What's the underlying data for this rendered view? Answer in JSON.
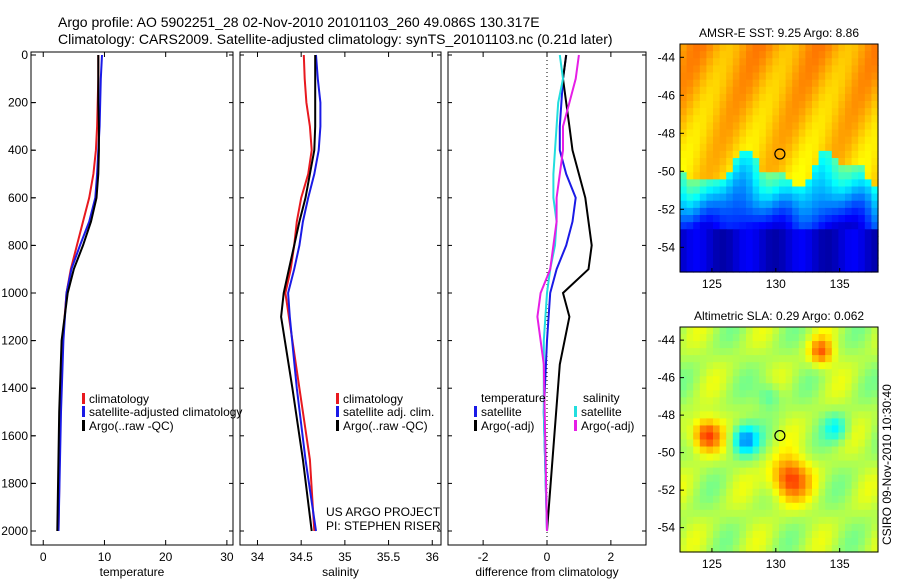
{
  "header": {
    "line1": "Argo profile: AO 5902251_28 02-Nov-2010 20101103_260 49.086S 130.317E",
    "line2": "Climatology: CARS2009. Satellite-adjusted climatology: synTS_20101103.nc (0.21d later)"
  },
  "side_label": "CSIRO 09-Nov-2010 10:30:40",
  "colors": {
    "red": "#e8191f",
    "blue": "#1a1ae6",
    "black": "#000000",
    "cyan": "#22dede",
    "magenta": "#e61ee6"
  },
  "chart_data": [
    {
      "type": "line",
      "xlabel": "temperature",
      "xlim": [
        -2,
        31
      ],
      "ylim": [
        0,
        2050
      ],
      "xticks": [
        0,
        10,
        20,
        30
      ],
      "yticks": [
        0,
        200,
        400,
        600,
        800,
        1000,
        1200,
        1400,
        1600,
        1800,
        2000
      ],
      "legend": [
        "climatology",
        "satellite-adjusted climatology",
        "Argo(..raw -QC)"
      ],
      "series": [
        {
          "name": "climatology",
          "color": "red",
          "x": [
            9.0,
            9.0,
            8.9,
            8.8,
            8.6,
            8.2,
            7.5,
            6.5,
            5.5,
            4.5,
            3.8,
            3.2,
            2.8,
            2.5
          ],
          "y": [
            0,
            100,
            200,
            300,
            400,
            500,
            600,
            700,
            800,
            900,
            1000,
            1200,
            1500,
            2000
          ]
        },
        {
          "name": "satellite-adjusted climatology",
          "color": "blue",
          "x": [
            9.6,
            9.4,
            9.3,
            9.2,
            9.0,
            8.8,
            8.5,
            7.5,
            6.0,
            4.6,
            3.8,
            3.3,
            2.9,
            2.5
          ],
          "y": [
            0,
            100,
            200,
            300,
            400,
            500,
            600,
            700,
            800,
            900,
            1000,
            1200,
            1500,
            2000
          ]
        },
        {
          "name": "Argo(..raw -QC)",
          "color": "black",
          "x": [
            9.0,
            9.0,
            9.0,
            9.1,
            9.1,
            9.0,
            8.7,
            7.8,
            6.5,
            5.0,
            4.0,
            3.0,
            2.6,
            2.3
          ],
          "y": [
            0,
            100,
            200,
            300,
            400,
            500,
            600,
            700,
            800,
            900,
            1000,
            1200,
            1500,
            2000
          ]
        }
      ]
    },
    {
      "type": "line",
      "xlabel": "salinity",
      "xlim": [
        33.8,
        36.1
      ],
      "ylim": [
        0,
        2050
      ],
      "xticks": [
        34,
        34.5,
        35,
        35.5,
        36
      ],
      "xtick_labels": [
        "34",
        "34.5",
        "35",
        "35.5",
        "36"
      ],
      "legend": [
        "climatology",
        "satellite adj. clim.",
        "Argo(..raw -QC)"
      ],
      "annotation": [
        "US ARGO PROJECT",
        "PI: STEPHEN RISER"
      ],
      "series": [
        {
          "name": "climatology",
          "color": "red",
          "x": [
            34.53,
            34.54,
            34.56,
            34.6,
            34.62,
            34.58,
            34.5,
            34.45,
            34.42,
            34.38,
            34.32,
            34.36,
            34.48,
            34.6,
            34.65
          ],
          "y": [
            0,
            100,
            200,
            300,
            400,
            500,
            600,
            700,
            800,
            900,
            1000,
            1100,
            1400,
            1700,
            2000
          ]
        },
        {
          "name": "satellite adj. clim.",
          "color": "blue",
          "x": [
            34.67,
            34.69,
            34.72,
            34.72,
            34.7,
            34.65,
            34.58,
            34.52,
            34.48,
            34.42,
            34.35,
            34.37,
            34.45,
            34.55,
            34.67
          ],
          "y": [
            0,
            100,
            200,
            300,
            400,
            500,
            600,
            700,
            800,
            900,
            1000,
            1100,
            1400,
            1700,
            2000
          ]
        },
        {
          "name": "Argo(..raw -QC)",
          "color": "black",
          "x": [
            34.66,
            34.66,
            34.66,
            34.66,
            34.65,
            34.6,
            34.55,
            34.48,
            34.42,
            34.36,
            34.3,
            34.27,
            34.4,
            34.52,
            34.62
          ],
          "y": [
            0,
            100,
            200,
            300,
            400,
            500,
            600,
            700,
            800,
            900,
            1000,
            1100,
            1400,
            1700,
            2000
          ]
        }
      ]
    },
    {
      "type": "line",
      "xlabel": "difference from climatology",
      "xlim": [
        -3.1,
        3.1
      ],
      "ylim": [
        0,
        2050
      ],
      "xticks": [
        -2,
        0,
        2
      ],
      "legend_temperature": {
        "heading": "temperature",
        "items": [
          "satellite",
          "Argo(-adj)"
        ]
      },
      "legend_salinity": {
        "heading": "salinity",
        "items": [
          "satellite",
          "Argo(-adj)"
        ]
      },
      "series": [
        {
          "name": "temperature satellite",
          "color": "blue",
          "x": [
            0.6,
            0.5,
            0.45,
            0.4,
            0.4,
            0.6,
            0.9,
            0.8,
            0.6,
            0.3,
            0.1,
            0.0,
            -0.1,
            0.0
          ],
          "y": [
            0,
            100,
            200,
            300,
            400,
            500,
            600,
            700,
            800,
            900,
            1000,
            1200,
            1500,
            2000
          ]
        },
        {
          "name": "temperature Argo(-adj)",
          "color": "black",
          "x": [
            0.6,
            0.5,
            0.6,
            0.7,
            0.8,
            1.0,
            1.2,
            1.3,
            1.4,
            1.3,
            0.5,
            0.7,
            0.4,
            0.0
          ],
          "y": [
            0,
            100,
            200,
            300,
            400,
            500,
            600,
            700,
            800,
            900,
            1000,
            1100,
            1300,
            2000
          ]
        },
        {
          "name": "salinity satellite",
          "color": "cyan",
          "x": [
            0.4,
            0.5,
            0.35,
            0.3,
            0.25,
            0.2,
            0.2,
            0.3,
            0.25,
            0.1,
            0.0,
            -0.1,
            -0.1,
            0.0
          ],
          "y": [
            0,
            100,
            200,
            300,
            400,
            500,
            600,
            700,
            800,
            900,
            1000,
            1200,
            1500,
            2000
          ]
        },
        {
          "name": "salinity Argo(-adj)",
          "color": "magenta",
          "x": [
            1.0,
            0.9,
            0.7,
            0.5,
            0.5,
            0.4,
            0.3,
            0.3,
            0.2,
            0.1,
            -0.2,
            -0.3,
            -0.1,
            0.0
          ],
          "y": [
            0,
            100,
            200,
            300,
            400,
            500,
            600,
            700,
            800,
            900,
            1000,
            1100,
            1300,
            2000
          ]
        }
      ]
    },
    {
      "type": "heatmap",
      "title": "AMSR-E SST: 9.25 Argo: 8.86",
      "xticks": [
        125,
        130,
        135
      ],
      "yticks": [
        -44,
        -46,
        -48,
        -50,
        -52,
        -54
      ],
      "xlim": [
        122.5,
        138
      ],
      "ylim": [
        -55.3,
        -43.3
      ],
      "marker": {
        "lon": 130.32,
        "lat": -49.09
      }
    },
    {
      "type": "heatmap",
      "title": "Altimetric SLA: 0.29 Argo: 0.062",
      "xticks": [
        125,
        130,
        135
      ],
      "yticks": [
        -44,
        -46,
        -48,
        -50,
        -52,
        -54
      ],
      "xlim": [
        122.5,
        138
      ],
      "ylim": [
        -55.3,
        -43.3
      ],
      "marker": {
        "lon": 130.32,
        "lat": -49.09
      }
    }
  ]
}
